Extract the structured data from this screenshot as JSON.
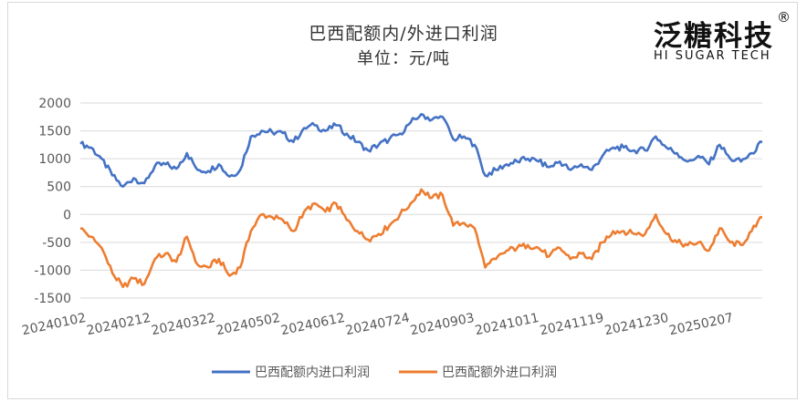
{
  "title": "巴西配额内/外进口利润",
  "subtitle": "单位：元/吨",
  "logo": {
    "cn": "泛糖科技",
    "en": "HI SUGAR TECH",
    "reg": "®"
  },
  "colors": {
    "inside": "#4472c4",
    "outside": "#ed7d31",
    "grid": "#d9d9d9",
    "axis_text": "#595959"
  },
  "chart_data": {
    "type": "line",
    "title": "巴西配额内/外进口利润",
    "subtitle": "单位：元/吨",
    "ylim": [
      -1500,
      2000
    ],
    "yticks": [
      -1500,
      -1000,
      -500,
      0,
      500,
      1000,
      1500,
      2000
    ],
    "grid": true,
    "legend": "bottom",
    "x_tick_labels": [
      "20240102",
      "20240212",
      "20240322",
      "20240502",
      "20240612",
      "20240724",
      "20240903",
      "20241011",
      "20241119",
      "20241230",
      "20250207"
    ],
    "x": [
      "2024-01-02",
      "2024-01-09",
      "2024-01-16",
      "2024-01-23",
      "2024-01-30",
      "2024-02-06",
      "2024-02-13",
      "2024-02-20",
      "2024-02-27",
      "2024-03-05",
      "2024-03-12",
      "2024-03-19",
      "2024-03-26",
      "2024-04-02",
      "2024-04-09",
      "2024-04-16",
      "2024-04-23",
      "2024-04-30",
      "2024-05-07",
      "2024-05-14",
      "2024-05-21",
      "2024-05-28",
      "2024-06-04",
      "2024-06-11",
      "2024-06-18",
      "2024-06-25",
      "2024-07-02",
      "2024-07-09",
      "2024-07-16",
      "2024-07-23",
      "2024-07-30",
      "2024-08-06",
      "2024-08-13",
      "2024-08-20",
      "2024-08-27",
      "2024-09-03",
      "2024-09-10",
      "2024-09-17",
      "2024-09-24",
      "2024-10-01",
      "2024-10-08",
      "2024-10-15",
      "2024-10-22",
      "2024-10-29",
      "2024-11-05",
      "2024-11-12",
      "2024-11-19",
      "2024-11-26",
      "2024-12-03",
      "2024-12-10",
      "2024-12-17",
      "2024-12-24",
      "2024-12-31",
      "2025-01-07",
      "2025-01-14",
      "2025-01-21",
      "2025-01-28",
      "2025-02-04",
      "2025-02-11",
      "2025-02-18",
      "2025-02-25",
      "2025-03-04",
      "2025-03-11",
      "2025-03-18",
      "2025-03-25"
    ],
    "series": [
      {
        "name": "巴西配额内进口利润",
        "color": "#4472c4",
        "values": [
          1270,
          1200,
          1000,
          700,
          500,
          650,
          560,
          870,
          900,
          820,
          1100,
          800,
          780,
          900,
          680,
          800,
          1400,
          1500,
          1480,
          1460,
          1300,
          1550,
          1600,
          1500,
          1600,
          1450,
          1300,
          1150,
          1250,
          1350,
          1450,
          1650,
          1800,
          1700,
          1750,
          1350,
          1400,
          1250,
          700,
          800,
          900,
          950,
          1000,
          950,
          850,
          950,
          800,
          900,
          800,
          1050,
          1200,
          1200,
          1150,
          1150,
          1400,
          1200,
          1100,
          950,
          1050,
          900,
          1250,
          1000,
          950,
          1100,
          1300
        ]
      },
      {
        "name": "巴西配额外进口利润",
        "color": "#ed7d31",
        "values": [
          -250,
          -400,
          -600,
          -1050,
          -1300,
          -1150,
          -1250,
          -800,
          -700,
          -850,
          -400,
          -900,
          -950,
          -800,
          -1100,
          -950,
          -300,
          0,
          -50,
          -100,
          -300,
          50,
          200,
          50,
          200,
          -100,
          -300,
          -450,
          -350,
          -200,
          0,
          200,
          450,
          300,
          350,
          -200,
          -150,
          -250,
          -950,
          -800,
          -650,
          -600,
          -550,
          -600,
          -750,
          -600,
          -800,
          -700,
          -800,
          -500,
          -300,
          -300,
          -350,
          -350,
          0,
          -350,
          -500,
          -550,
          -500,
          -650,
          -250,
          -500,
          -550,
          -300,
          -50
        ]
      }
    ]
  }
}
